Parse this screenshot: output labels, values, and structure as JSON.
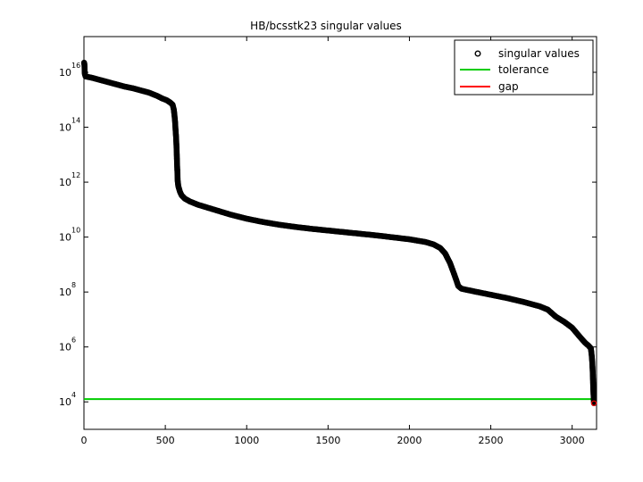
{
  "chart_data": {
    "type": "scatter",
    "title": "HB/bcsstk23 singular values",
    "xlabel": "",
    "ylabel": "",
    "yscale": "log",
    "xlim": [
      0,
      3150
    ],
    "ylim_log10": [
      3,
      17.3
    ],
    "x_ticks": [
      "0",
      "500",
      "1000",
      "1500",
      "2000",
      "2500",
      "3000"
    ],
    "y_tick_base": "10",
    "y_tick_exponents": [
      "4",
      "6",
      "8",
      "10",
      "12",
      "14",
      "16"
    ],
    "legend": {
      "placement": "top-right",
      "entries": [
        "singular values",
        "tolerance",
        "gap"
      ]
    },
    "colors": {
      "markers": "#000000",
      "tolerance": "#00cc00",
      "gap": "#ff0000"
    },
    "tolerance_log10": 4.1,
    "gap_x": 3134,
    "series": [
      {
        "name": "singular values",
        "points_log10": [
          [
            1,
            16.35
          ],
          [
            2,
            16.32
          ],
          [
            3,
            16.28
          ],
          [
            4,
            16.1
          ],
          [
            5,
            15.95
          ],
          [
            10,
            15.85
          ],
          [
            50,
            15.8
          ],
          [
            100,
            15.72
          ],
          [
            150,
            15.64
          ],
          [
            200,
            15.56
          ],
          [
            250,
            15.48
          ],
          [
            300,
            15.42
          ],
          [
            350,
            15.34
          ],
          [
            400,
            15.26
          ],
          [
            450,
            15.14
          ],
          [
            480,
            15.05
          ],
          [
            510,
            14.98
          ],
          [
            530,
            14.9
          ],
          [
            545,
            14.82
          ],
          [
            552,
            14.65
          ],
          [
            556,
            14.45
          ],
          [
            560,
            14.2
          ],
          [
            563,
            13.9
          ],
          [
            566,
            13.65
          ],
          [
            568,
            13.4
          ],
          [
            570,
            13.1
          ],
          [
            572,
            12.7
          ],
          [
            574,
            12.4
          ],
          [
            576,
            12.05
          ],
          [
            580,
            11.85
          ],
          [
            590,
            11.65
          ],
          [
            600,
            11.52
          ],
          [
            620,
            11.4
          ],
          [
            650,
            11.3
          ],
          [
            700,
            11.18
          ],
          [
            800,
            11.0
          ],
          [
            900,
            10.82
          ],
          [
            1000,
            10.67
          ],
          [
            1100,
            10.55
          ],
          [
            1200,
            10.45
          ],
          [
            1300,
            10.37
          ],
          [
            1400,
            10.3
          ],
          [
            1500,
            10.24
          ],
          [
            1600,
            10.18
          ],
          [
            1700,
            10.12
          ],
          [
            1800,
            10.06
          ],
          [
            1900,
            9.99
          ],
          [
            2000,
            9.92
          ],
          [
            2100,
            9.82
          ],
          [
            2150,
            9.73
          ],
          [
            2190,
            9.6
          ],
          [
            2220,
            9.4
          ],
          [
            2250,
            9.05
          ],
          [
            2275,
            8.65
          ],
          [
            2290,
            8.4
          ],
          [
            2300,
            8.22
          ],
          [
            2320,
            8.12
          ],
          [
            2400,
            8.02
          ],
          [
            2500,
            7.9
          ],
          [
            2600,
            7.78
          ],
          [
            2700,
            7.64
          ],
          [
            2800,
            7.48
          ],
          [
            2850,
            7.36
          ],
          [
            2900,
            7.1
          ],
          [
            2950,
            6.92
          ],
          [
            3000,
            6.7
          ],
          [
            3050,
            6.35
          ],
          [
            3080,
            6.15
          ],
          [
            3100,
            6.05
          ],
          [
            3115,
            5.95
          ],
          [
            3120,
            5.7
          ],
          [
            3124,
            5.4
          ],
          [
            3127,
            5.0
          ],
          [
            3129,
            4.6
          ],
          [
            3131,
            4.3
          ],
          [
            3133,
            4.12
          ],
          [
            3134,
            3.95
          ]
        ]
      }
    ]
  }
}
